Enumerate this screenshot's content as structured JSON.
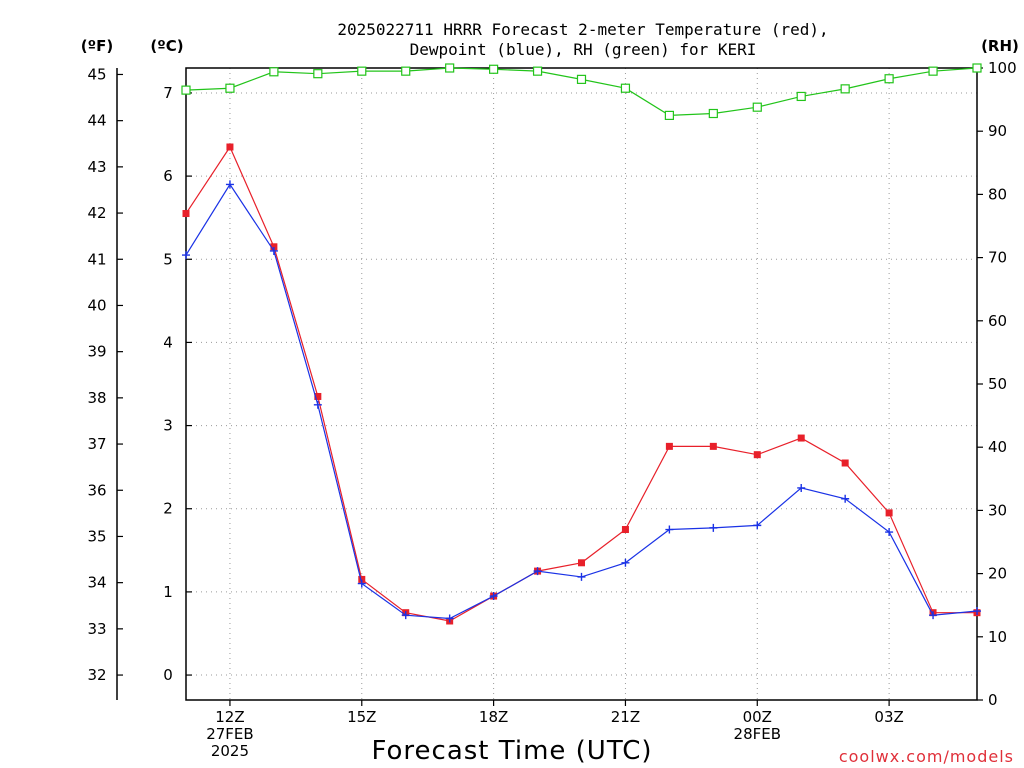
{
  "chart_data": {
    "type": "line",
    "title_line1": "2025022711 HRRR Forecast 2-meter Temperature (red),",
    "title_line2": "Dewpoint (blue), RH (green) for KERI",
    "xlabel": "Forecast Time (UTC)",
    "credit": "coolwx.com/models",
    "left_outer_unit": "(ºF)",
    "left_inner_unit": "(ºC)",
    "right_unit": "(RH)",
    "x_hours": [
      11,
      12,
      13,
      14,
      15,
      16,
      17,
      18,
      19,
      20,
      21,
      22,
      23,
      24,
      25,
      26,
      27,
      28,
      29
    ],
    "x_ticks": [
      {
        "hour": 12,
        "lines": [
          "12Z",
          "27FEB",
          "2025"
        ]
      },
      {
        "hour": 15,
        "lines": [
          "15Z"
        ]
      },
      {
        "hour": 18,
        "lines": [
          "18Z"
        ]
      },
      {
        "hour": 21,
        "lines": [
          "21Z"
        ]
      },
      {
        "hour": 24,
        "lines": [
          "00Z",
          "28FEB"
        ]
      },
      {
        "hour": 27,
        "lines": [
          "03Z"
        ]
      }
    ],
    "x_range": [
      11,
      29
    ],
    "celsius_range": [
      -0.3,
      7.3
    ],
    "celsius_ticks": [
      0,
      1,
      2,
      3,
      4,
      5,
      6,
      7
    ],
    "fahrenheit_ticks": [
      32,
      33,
      34,
      35,
      36,
      37,
      38,
      39,
      40,
      41,
      42,
      43,
      44,
      45
    ],
    "rh_range": [
      0,
      100
    ],
    "rh_ticks": [
      0,
      10,
      20,
      30,
      40,
      50,
      60,
      70,
      80,
      90,
      100
    ],
    "grid": true,
    "series": [
      {
        "name": "Temperature",
        "color": "#e8202a",
        "marker": "filled-square",
        "axis": "celsius",
        "values": [
          5.55,
          6.35,
          5.15,
          3.35,
          1.15,
          0.75,
          0.65,
          0.95,
          1.25,
          1.35,
          1.75,
          2.75,
          2.75,
          2.65,
          2.85,
          2.55,
          1.95,
          0.75,
          0.75
        ]
      },
      {
        "name": "Dewpoint",
        "color": "#1a32e6",
        "marker": "plus",
        "axis": "celsius",
        "values": [
          5.05,
          5.9,
          5.1,
          3.25,
          1.1,
          0.72,
          0.68,
          0.95,
          1.25,
          1.18,
          1.35,
          1.75,
          1.77,
          1.8,
          2.25,
          2.12,
          1.72,
          0.72,
          0.77
        ]
      },
      {
        "name": "RH",
        "color": "#22c41a",
        "marker": "open-square",
        "axis": "rh",
        "values": [
          96.5,
          96.8,
          99.4,
          99.1,
          99.5,
          99.5,
          100,
          99.8,
          99.5,
          98.2,
          96.8,
          92.5,
          92.8,
          93.8,
          95.5,
          96.7,
          98.3,
          99.5,
          100
        ]
      }
    ]
  }
}
